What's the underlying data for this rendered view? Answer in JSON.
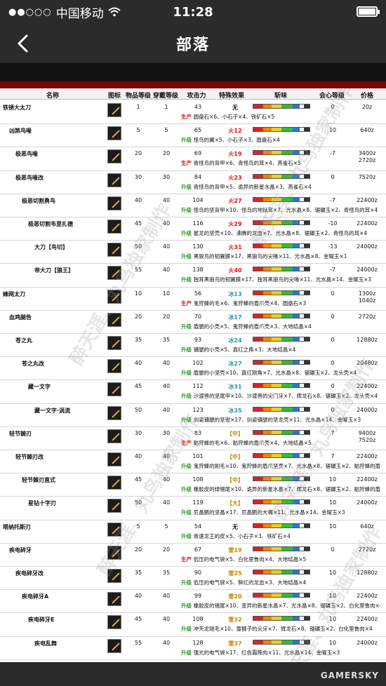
{
  "status": {
    "dots": "●●○○○",
    "carrier": "中国移动",
    "time": "11:28"
  },
  "nav": {
    "title": "部落"
  },
  "table": {
    "headers": {
      "name": "名称",
      "icon": "图标",
      "rarity": "物品等级",
      "slots": "穿戴等级",
      "attack": "攻击力",
      "special": "特殊效果",
      "sharpness": "斩味",
      "affinity": "会心等级",
      "price": "价格"
    },
    "rows": [
      {
        "name": "铁锈大太刀",
        "indent": 0,
        "rarity": "1",
        "cost": "1",
        "atk": "43",
        "eff": "无",
        "effc": "#111",
        "crit": "0",
        "price": "20z",
        "tag": "生产",
        "mat": "圆盘石×6、小石子×4、铁矿石×5"
      },
      {
        "name": "凶煞鸟喙",
        "indent": 1,
        "rarity": "5",
        "cost": "5",
        "atk": "65",
        "eff": "火12",
        "effc": "#d11",
        "crit": "10",
        "price": "640z",
        "tag": "升级",
        "mat": "怪鸟的翼×5、小石子×3、圆盘石×4"
      },
      {
        "name": "极恶鸟喙",
        "indent": 2,
        "rarity": "20",
        "cost": "20",
        "atk": "69",
        "eff": "火19",
        "effc": "#d11",
        "crit": "-7",
        "price": "3400z 2720z",
        "tag": "生产",
        "mat": "青怪鸟的背甲×6、青怪鸟的耳×4、燕雀石×5"
      },
      {
        "name": "极恶鸟喙改",
        "indent": 2,
        "rarity": "30",
        "cost": "30",
        "atk": "84",
        "eff": "火23",
        "effc": "#d11",
        "crit": "0",
        "price": "7520z",
        "tag": "升级",
        "mat": "青怪鸟的背甲×5、诡异的新星水晶×3、燕雀石×4"
      },
      {
        "name": "极恶切割勇鸟",
        "indent": 3,
        "rarity": "40",
        "cost": "40",
        "atk": "104",
        "eff": "火27",
        "effc": "#d11",
        "crit": "-7",
        "price": "22400z",
        "tag": "升级",
        "mat": "怪鸟的坚背甲×10、怪鸟的地狱耳×7、光水晶×8、锯碾玉×2、青怪鸟的耳×4"
      },
      {
        "name": "极恶切割韦里扎德",
        "indent": 4,
        "rarity": "45",
        "cost": "40",
        "atk": "116",
        "eff": "火29",
        "effc": "#d11",
        "crit": "-10",
        "price": "22400z",
        "tag": "升级",
        "mat": "星龙的坚壳×10、沸腾的龙血×7、光水晶×8、锯碾玉×2、青怪鸟的耳×4"
      },
      {
        "name": "大刀【鸟切】",
        "indent": 5,
        "rarity": "50",
        "cost": "40",
        "atk": "130",
        "eff": "火31",
        "effc": "#d11",
        "crit": "-13",
        "price": "24000z",
        "tag": "升级",
        "mat": "黑狼鸟的韧翼膜×17、黑狼鸟的尖喙×11、光水晶×8、金曜玉×1"
      },
      {
        "name": "帝大刀【狼王】",
        "indent": 5,
        "rarity": "55",
        "cost": "40",
        "atk": "138",
        "eff": "火40",
        "effc": "#d11",
        "crit": "-7",
        "price": "24000z",
        "tag": "升级",
        "mat": "独耳黑狼鸟的韧翼膜×17、独耳黑狼鸟的尖喙×11、光水晶×14、金曜玉×3"
      },
      {
        "name": "蜂网太刀",
        "indent": 0,
        "rarity": "10",
        "cost": "10",
        "atk": "56",
        "eff": "冰13",
        "effc": "#29a",
        "crit": "0",
        "price": "1300z 1040z",
        "tag": "生产",
        "mat": "鬼狩蜂的毛×6、鬼狩蜂的盾爪壳×4、圆盘石×3"
      },
      {
        "name": "血鸡腿告",
        "indent": 1,
        "rarity": "20",
        "cost": "20",
        "atk": "70",
        "eff": "冰17",
        "effc": "#29a",
        "crit": "0",
        "price": "2720z",
        "tag": "升级",
        "mat": "盾腿的小壳×5、鬼狩蜂的盾爪壳×3、大地结晶×4"
      },
      {
        "name": "苍之丸",
        "indent": 2,
        "rarity": "35",
        "cost": "35",
        "atk": "93",
        "eff": "冰24",
        "effc": "#29a",
        "crit": "0",
        "price": "12880z",
        "tag": "升级",
        "mat": "镰腿的小壳×5、真红之角×3、大地结晶×4"
      },
      {
        "name": "苍之丸改",
        "indent": 3,
        "rarity": "40",
        "cost": "40",
        "atk": "102",
        "eff": "冰27",
        "effc": "#29a",
        "crit": "0",
        "price": "20480z",
        "tag": "升级",
        "mat": "盾腿的小坚壳×10、真红刚角×7、光水晶×8、锯碾玉×2、龙头壳×4"
      },
      {
        "name": "藏一文字",
        "indent": 4,
        "rarity": "45",
        "cost": "40",
        "atk": "112",
        "eff": "冰31",
        "effc": "#29a",
        "crit": "0",
        "price": "22400z",
        "tag": "升级",
        "mat": "沙渡兽的坚尾甲×10、沙渡兽的尖门牙×7、辉龙石×8、锯碾玉×2、龙头壳×4"
      },
      {
        "name": "藏一文字·涡流",
        "indent": 5,
        "rarity": "50",
        "cost": "40",
        "atk": "123",
        "eff": "冰35",
        "effc": "#29a",
        "crit": "0",
        "price": "24000z",
        "tag": "升级",
        "mat": "剑姿镰腿的坚钳×17、剑姿镰腿的坚龙壳×11、光水晶×14、金曜玉×3"
      },
      {
        "name": "轻节棘刃",
        "indent": 1,
        "rarity": "30",
        "cost": "30",
        "atk": "83",
        "eff": "【中】",
        "effc": "#b80",
        "crit": "7",
        "price": "9400z 7520z",
        "tag": "生产",
        "mat": "骷狩蜂的毛×6、骷狩蜂的盾爪壳×4、大地结晶×5"
      },
      {
        "name": "轻节棘刃改",
        "indent": 2,
        "rarity": "40",
        "cost": "40",
        "atk": "101",
        "eff": "【中】",
        "effc": "#b80",
        "crit": "7",
        "price": "22400z",
        "tag": "升级",
        "mat": "鬼狩蜂的刚毛×10、鬼狩蜂的盾爪坚壳×7、光水晶×8、锯碾玉×2、骷狩蜂的盾爪壳×4"
      },
      {
        "name": "轻节棘刃直式",
        "indent": 3,
        "rarity": "45",
        "cost": "40",
        "atk": "108",
        "eff": "【中】",
        "effc": "#b80",
        "crit": "10",
        "price": "22400z",
        "tag": "升级",
        "mat": "橡胶皮的绿锡尾×10、诡异的新星水晶×7、辉龙石×8、锯碾玉×2、骷狩蜂的盾爪壳×4"
      },
      {
        "name": "星钻十字刃",
        "indent": 4,
        "rarity": "50",
        "cost": "40",
        "atk": "119",
        "eff": "【大】",
        "effc": "#b80",
        "crit": "10",
        "price": "24000z",
        "tag": "升级",
        "mat": "尼晶鹏的坚晶×17、尼晶鹏的大嘴×11、光水晶×14、金曜玉×3"
      },
      {
        "name": "塔纳托斯刃",
        "indent": 0,
        "rarity": "5",
        "cost": "5",
        "atk": "54",
        "eff": "无",
        "effc": "#111",
        "crit": "10",
        "price": "640z",
        "tag": "升级",
        "mat": "青速龙王的皮×5、小石子×3、铁矿石×4"
      },
      {
        "name": "疾电碎牙",
        "indent": 1,
        "rarity": "20",
        "cost": "20",
        "atk": "67",
        "eff": "雷19",
        "effc": "#c80",
        "crit": "0",
        "price": "2720z",
        "tag": "生产",
        "mat": "低压的电气袋×5、白化里鲁肉×4、大地结晶×5"
      },
      {
        "name": "疾电碎牙改",
        "indent": 2,
        "rarity": "35",
        "cost": "35",
        "atk": "90",
        "eff": "雷25",
        "effc": "#c80",
        "crit": "10",
        "price": "12880z",
        "tag": "升级",
        "mat": "低压的电气袋×5、鲜红的龙血×3、大地结晶×4"
      },
      {
        "name": "疾电碎牙A",
        "indent": 3,
        "rarity": "40",
        "cost": "40",
        "atk": "99",
        "eff": "雷28",
        "effc": "#c80",
        "crit": "10",
        "price": "22400z",
        "tag": "升级",
        "mat": "橡胶皮的锡尾×10、变异的新星水晶×7、光水晶×8、锯碾玉×2、白化里鲁肉×4"
      },
      {
        "name": "疾电碎牙E",
        "indent": 4,
        "rarity": "45",
        "cost": "40",
        "atk": "108",
        "eff": "雷32",
        "effc": "#c80",
        "crit": "10",
        "price": "22400z",
        "tag": "升级",
        "mat": "冲天龙刚毛×10、雪狮子的尖牙×7、辉龙石×8、锯碾玉×2、白化里鲁肉×4"
      },
      {
        "name": "疾电乱舞",
        "indent": 5,
        "rarity": "55",
        "cost": "40",
        "atk": "128",
        "eff": "雷37",
        "effc": "#c80",
        "crit": "10",
        "price": "24000z",
        "tag": "升级",
        "mat": "强光的电气袋×17、红色霜降肉×11、光水晶×14、金曜玉×3"
      }
    ]
  },
  "watermark": "醉天涯、丸鸟独家制作",
  "brand": "GAMERSKY"
}
